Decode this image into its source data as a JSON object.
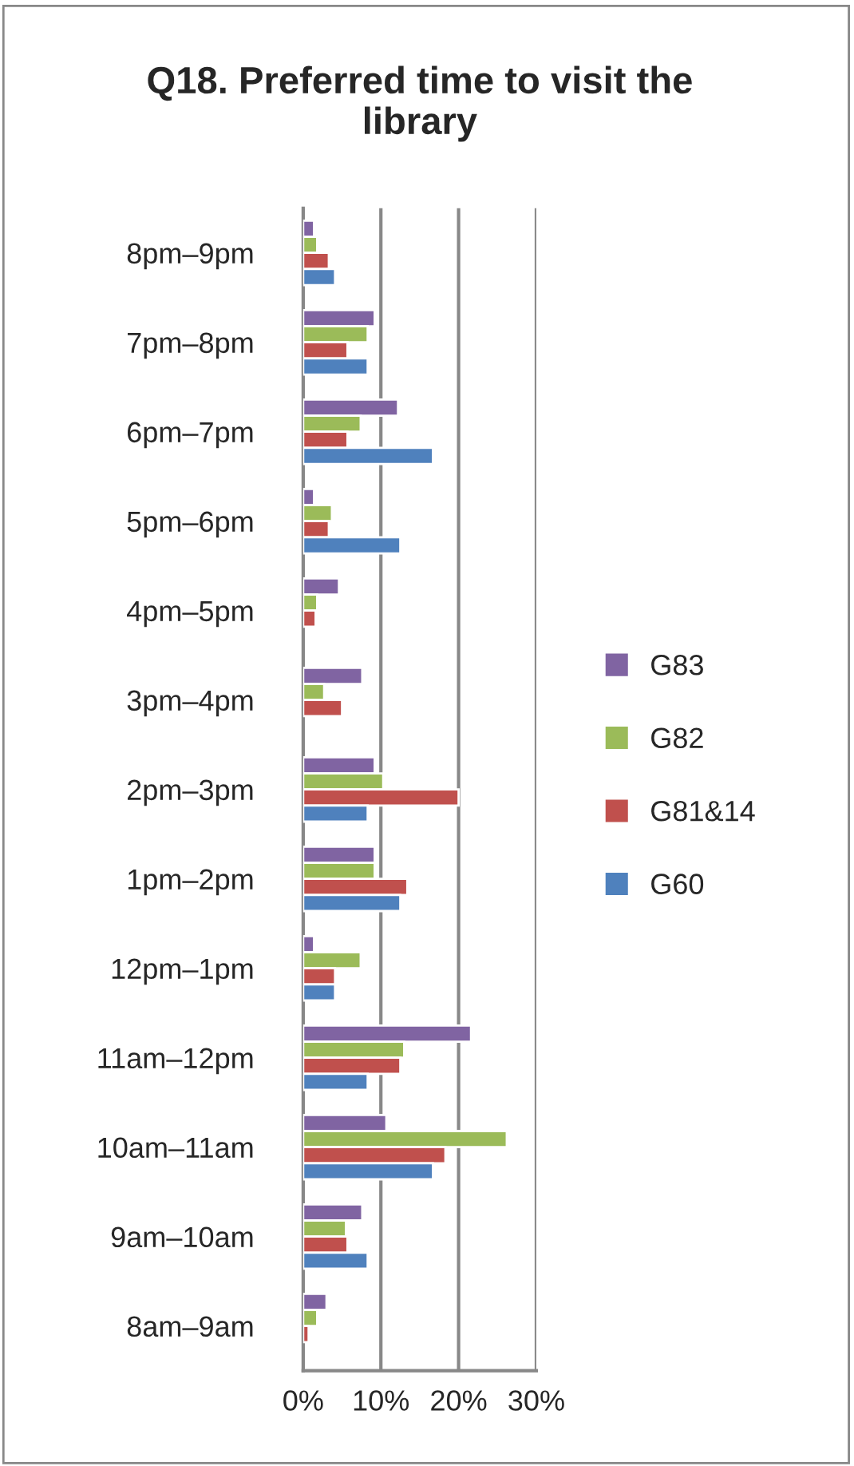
{
  "chart_data": {
    "type": "bar",
    "orientation": "horizontal",
    "title": "Q18. Preferred time to visit the library",
    "categories": [
      "8pm–9pm",
      "7pm–8pm",
      "6pm–7pm",
      "5pm–6pm",
      "4pm–5pm",
      "3pm–4pm",
      "2pm–3pm",
      "1pm–2pm",
      "12pm–1pm",
      "11am–12pm",
      "10am–11am",
      "9am–10am",
      "8am–9am"
    ],
    "series": [
      {
        "name": "G83",
        "color": "#8064a2",
        "values": [
          1.4,
          9.2,
          12.2,
          1.4,
          4.6,
          7.6,
          9.2,
          9.2,
          1.4,
          21.6,
          10.7,
          7.6,
          3.0
        ]
      },
      {
        "name": "G82",
        "color": "#9bbb59",
        "values": [
          1.8,
          8.3,
          7.4,
          3.7,
          1.8,
          2.7,
          10.3,
          9.2,
          7.4,
          13.0,
          26.2,
          5.5,
          1.8
        ]
      },
      {
        "name": "G81&14",
        "color": "#c0504d",
        "values": [
          3.3,
          5.7,
          5.7,
          3.3,
          1.6,
          5.0,
          20.0,
          13.4,
          4.1,
          12.5,
          18.3,
          5.7,
          0.7
        ]
      },
      {
        "name": "G60",
        "color": "#4f81bd",
        "values": [
          4.1,
          8.3,
          16.7,
          12.5,
          null,
          null,
          8.3,
          12.5,
          4.1,
          8.3,
          16.7,
          8.3,
          null
        ]
      }
    ],
    "xlim": [
      0,
      30
    ],
    "xticks": [
      {
        "value": 0,
        "label": "0%"
      },
      {
        "value": 10,
        "label": "10%"
      },
      {
        "value": 20,
        "label": "20%"
      },
      {
        "value": 30,
        "label": "30%"
      }
    ],
    "grid": "x",
    "legend": "right"
  }
}
